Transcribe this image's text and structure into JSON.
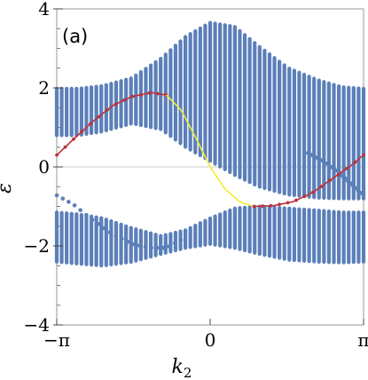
{
  "chart_data": {
    "type": "scatter",
    "panel_label": "(a)",
    "xlabel": "k",
    "xlabel_sub": "2",
    "ylabel": "ε",
    "xlim": [
      -3.14159,
      3.14159
    ],
    "ylim": [
      -4,
      4
    ],
    "x_ticks": [
      {
        "value": -3.14159,
        "label": "−π"
      },
      {
        "value": 0,
        "label": "0"
      },
      {
        "value": 3.14159,
        "label": "π"
      }
    ],
    "y_ticks": [
      {
        "value": 4,
        "label": "4"
      },
      {
        "value": 2,
        "label": "2"
      },
      {
        "value": 0,
        "label": "0"
      },
      {
        "value": -2,
        "label": "−2"
      },
      {
        "value": -4,
        "label": "−4"
      }
    ],
    "zero_line": true,
    "colors": {
      "bulk": "#5b7fb9",
      "edge_red": "#c0303a",
      "edge_yellow": "#f0ec30",
      "frame": "#999999",
      "zero_line": "#cccccc"
    },
    "series": [
      {
        "kind": "band",
        "color": "bulk",
        "k": [
          -3.14,
          -2.7,
          -2.2,
          -1.6,
          -1.0,
          -0.5,
          0.0,
          0.5,
          1.0,
          1.6,
          2.2,
          2.7,
          3.14
        ],
        "upper": [
          1.98,
          1.98,
          2.05,
          2.25,
          2.75,
          3.3,
          3.65,
          3.55,
          3.05,
          2.5,
          2.2,
          2.02,
          1.98
        ],
        "lower": [
          0.8,
          0.8,
          0.9,
          1.1,
          0.95,
          0.5,
          0.15,
          -0.2,
          -0.5,
          -0.7,
          -0.78,
          -0.8,
          -0.8
        ]
      },
      {
        "kind": "band",
        "color": "bulk",
        "k": [
          -3.14,
          -2.7,
          -2.2,
          -1.6,
          -1.0,
          -0.5,
          0.0,
          0.5,
          1.0,
          1.6,
          2.2,
          2.7,
          3.14
        ],
        "upper": [
          -1.15,
          -1.2,
          -1.3,
          -1.55,
          -1.75,
          -1.6,
          -1.3,
          -1.05,
          -1.0,
          -1.05,
          -1.1,
          -1.15,
          -1.15
        ],
        "lower": [
          -2.4,
          -2.45,
          -2.5,
          -2.4,
          -2.2,
          -2.05,
          -1.95,
          -2.05,
          -2.2,
          -2.35,
          -2.4,
          -2.42,
          -2.4
        ]
      },
      {
        "kind": "edge_dots",
        "color": "bulk",
        "k": [
          -3.14,
          -2.8,
          -2.4,
          -2.0,
          -1.6,
          -1.2,
          -0.9,
          -0.6
        ],
        "e": [
          -0.72,
          -0.95,
          -1.35,
          -1.7,
          -1.95,
          -2.05,
          -2.05,
          -1.85
        ]
      },
      {
        "kind": "edge_dots",
        "color": "bulk",
        "k": [
          2.0,
          2.3,
          2.6,
          2.9,
          3.14
        ],
        "e": [
          0.35,
          0.15,
          -0.1,
          -0.45,
          -0.72
        ]
      },
      {
        "kind": "edge_line",
        "color": "edge_red",
        "k": [
          -3.14,
          -2.8,
          -2.4,
          -2.0,
          -1.6,
          -1.2,
          -0.9
        ],
        "e": [
          0.3,
          0.7,
          1.15,
          1.55,
          1.78,
          1.88,
          1.82
        ]
      },
      {
        "kind": "edge_line",
        "color": "edge_yellow",
        "k": [
          -0.9,
          -0.6,
          -0.3,
          0.0,
          0.3,
          0.6,
          0.9
        ],
        "e": [
          1.82,
          1.45,
          0.75,
          0.0,
          -0.55,
          -0.88,
          -1.0
        ]
      },
      {
        "kind": "edge_line",
        "color": "edge_red",
        "k": [
          0.9,
          1.3,
          1.7,
          2.1,
          2.5,
          2.9,
          3.14
        ],
        "e": [
          -1.0,
          -0.98,
          -0.88,
          -0.65,
          -0.3,
          0.05,
          0.3
        ]
      }
    ]
  }
}
